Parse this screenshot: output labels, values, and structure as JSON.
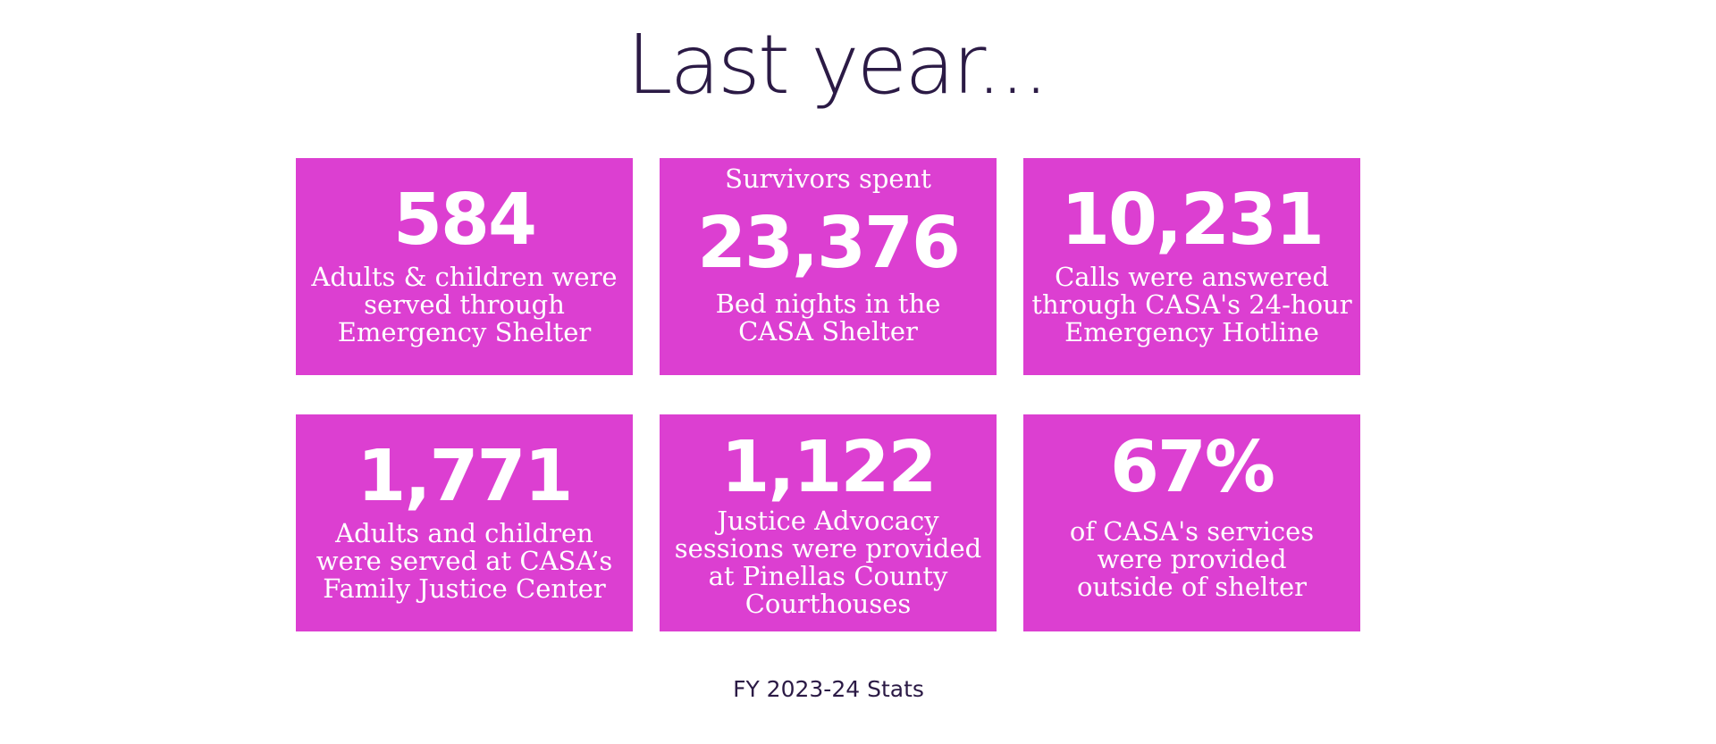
{
  "heading": "Last year...",
  "cards": [
    {
      "number": "584",
      "description": "Adults & children were served through Emergency Shelter"
    },
    {
      "prefix": "Survivors spent",
      "number": "23,376",
      "description": "Bed nights in the CASA Shelter"
    },
    {
      "number": "10,231",
      "description": "Calls were answered through CASA's 24-hour Emergency Hotline"
    },
    {
      "number": "1,771",
      "description": "Adults and children were served at CASA’s Family Justice Center"
    },
    {
      "number": "1,122",
      "description": "Justice Advocacy sessions were provided at Pinellas County Courthouses"
    },
    {
      "number": "67%",
      "description": "of CASA's services were provided outside of shelter"
    }
  ],
  "footer": "FY 2023-24 Stats",
  "colors": {
    "card_background": "#dc3fd1",
    "heading_text": "#2b1a45",
    "card_text": "#ffffff"
  }
}
